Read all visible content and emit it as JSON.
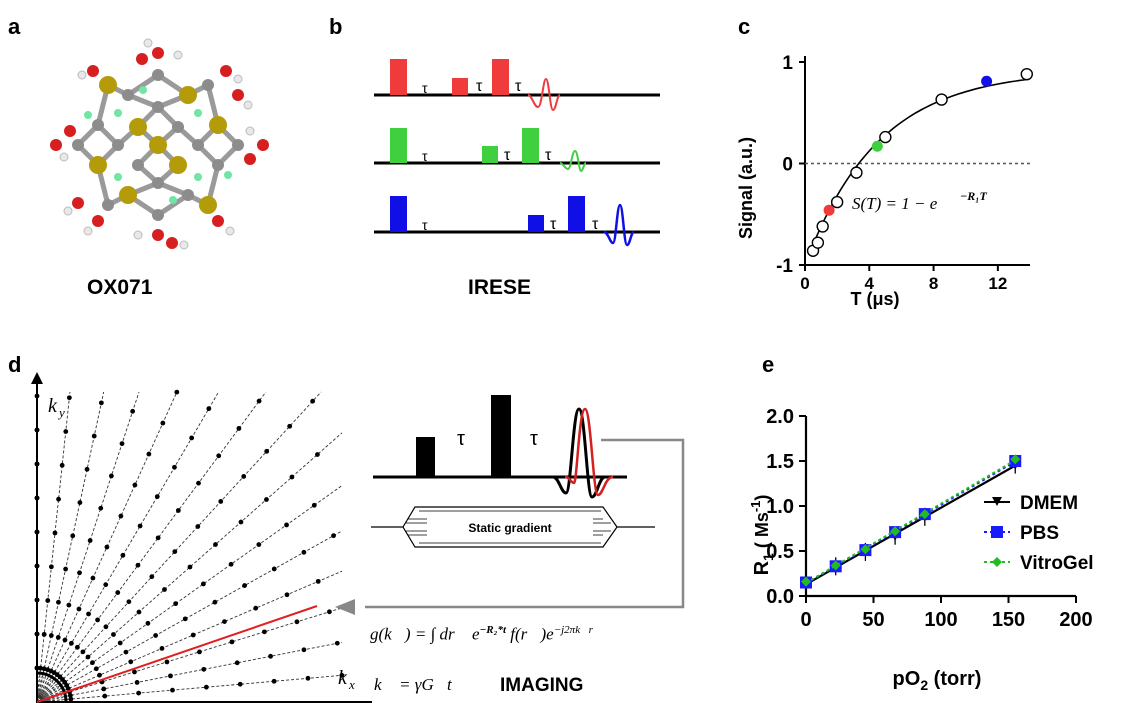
{
  "panels": {
    "a": {
      "letter": "a",
      "caption": "OX071"
    },
    "b": {
      "letter": "b",
      "caption": "IRESE",
      "tau": "τ"
    },
    "c": {
      "letter": "c"
    },
    "d": {
      "letter": "d"
    },
    "e": {
      "letter": "e"
    }
  },
  "panel_c": {
    "xlabel": "T (μs)",
    "ylabel": "Signal (a.u.)",
    "formula": "S(T) = 1 − e",
    "formula_exp": "−R₁T",
    "xticks": [
      "0",
      "4",
      "8",
      "12"
    ],
    "yticks": [
      "1",
      "0",
      "-1"
    ]
  },
  "panel_d": {
    "ky_label": "k",
    "ky_sub": "y",
    "kx_label": "k",
    "kx_sub": "x",
    "tau": "τ",
    "gradient_label": "Static gradient",
    "imaging_label": "IMAGING",
    "eq1": "g(k⃗) = ∫ dr⃗ e",
    "eq1_exp": "−R₂*t",
    "eq1_mid": " f(r⃗)e",
    "eq1_exp2": "−j2πk⃗r⃗",
    "eq2": "k⃗ = γG⃗t"
  },
  "panel_e": {
    "xlabel": "pO",
    "xlabel_sub": "2",
    "xlabel_tail": " (torr)",
    "ylabel": "R",
    "ylabel_sub": "1",
    "ylabel_units": " ( Ms",
    "ylabel_sup": "-1",
    "ylabel_close": ")",
    "xticks": [
      "0",
      "50",
      "100",
      "150",
      "200"
    ],
    "yticks": [
      "0.0",
      "0.5",
      "1.0",
      "1.5",
      "2.0"
    ],
    "legend": [
      "DMEM",
      "PBS",
      "VitroGel"
    ]
  },
  "colors": {
    "red": "#ef3b3b",
    "green": "#3fcf3f",
    "blue": "#1010e6",
    "dmem": "#000000",
    "pbs": "#1a1aff",
    "vitrogel": "#22bb22",
    "arrow": "#888888"
  },
  "chart_data": [
    {
      "type": "scatter",
      "panel": "c",
      "xlabel": "T (μs)",
      "ylabel": "Signal (a.u.)",
      "xlim": [
        0,
        14
      ],
      "ylim": [
        -1,
        1
      ],
      "x": [
        0.5,
        0.8,
        1.1,
        1.5,
        2.0,
        3.2,
        4.5,
        5.0,
        8.5,
        11.3,
        13.8
      ],
      "y": [
        -0.86,
        -0.78,
        -0.62,
        -0.46,
        -0.38,
        -0.09,
        0.17,
        0.26,
        0.63,
        0.81,
        0.88
      ],
      "highlight": {
        "red": 3,
        "green": 6,
        "blue": 9
      },
      "annotation": "S(T) = 1 − e^(−R₁T)"
    },
    {
      "type": "line",
      "panel": "e",
      "xlabel": "pO2 (torr)",
      "ylabel": "R1 ( Ms-1)",
      "xlim": [
        0,
        200
      ],
      "ylim": [
        0,
        2.0
      ],
      "x": [
        0,
        22,
        44,
        66,
        88,
        155
      ],
      "series": [
        {
          "name": "DMEM",
          "values": [
            0.14,
            0.33,
            0.49,
            0.67,
            0.88,
            1.46
          ]
        },
        {
          "name": "PBS",
          "values": [
            0.15,
            0.33,
            0.51,
            0.71,
            0.91,
            1.5
          ]
        },
        {
          "name": "VitroGel",
          "values": [
            0.16,
            0.34,
            0.52,
            0.72,
            0.91,
            1.52
          ]
        }
      ],
      "legend": "right"
    }
  ]
}
